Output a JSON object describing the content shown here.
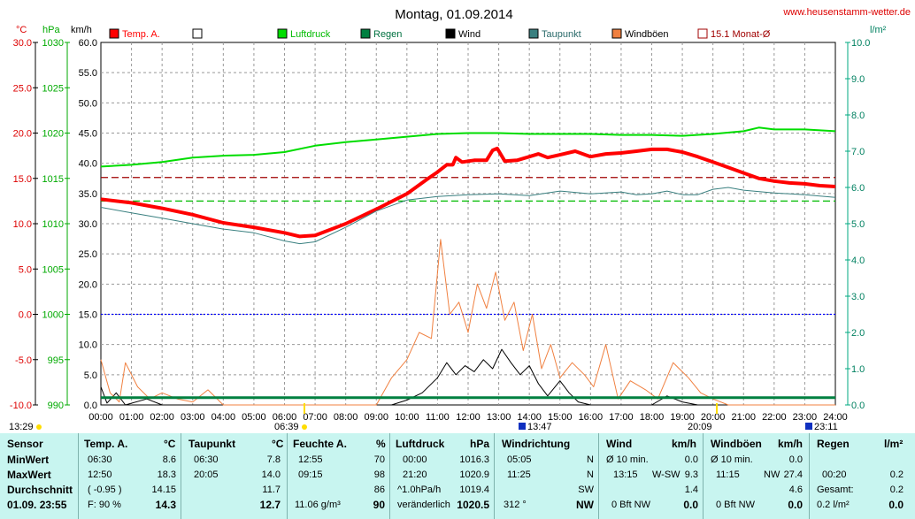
{
  "title": "Montag, 01.09.2014",
  "site": "www.heusenstamm-wetter.de",
  "axis_units": {
    "temp": "°C",
    "press": "hPa",
    "wind": "km/h",
    "rain": "l/m²"
  },
  "legend": [
    {
      "label": "Temp. A.",
      "color": "#ff0000",
      "text_color": "#ff0000",
      "style": "fill"
    },
    {
      "label": "",
      "color": "#ffffff",
      "text_color": "#000000",
      "style": "empty"
    },
    {
      "label": "Luftdruck",
      "color": "#00dd00",
      "text_color": "#00bb00",
      "style": "fill"
    },
    {
      "label": "Regen",
      "color": "#008040",
      "text_color": "#007040",
      "style": "fill"
    },
    {
      "label": "Wind",
      "color": "#000000",
      "text_color": "#000000",
      "style": "fill"
    },
    {
      "label": "Taupunkt",
      "color": "#3a8080",
      "text_color": "#2a6a6a",
      "style": "fill"
    },
    {
      "label": "Windböen",
      "color": "#f08040",
      "text_color": "#000000",
      "style": "fill"
    },
    {
      "label": "15.1 Monat-Ø",
      "color": "#a00000",
      "text_color": "#a00000",
      "style": "outline"
    }
  ],
  "chart_data": {
    "type": "line",
    "x_ticks": [
      "00:00",
      "01:00",
      "02:00",
      "03:00",
      "04:00",
      "05:00",
      "06:00",
      "07:00",
      "08:00",
      "09:00",
      "10:00",
      "11:00",
      "12:00",
      "13:00",
      "14:00",
      "15:00",
      "16:00",
      "17:00",
      "18:00",
      "19:00",
      "20:00",
      "21:00",
      "22:00",
      "23:00",
      "24:00"
    ],
    "y_ticks": {
      "temp": [
        "30.0",
        "25.0",
        "20.0",
        "15.0",
        "10.0",
        "5.0",
        "0.0",
        "-5.0",
        "-10.0"
      ],
      "press": [
        "1030",
        "1025",
        "1020",
        "1015",
        "1010",
        "1005",
        "1000",
        "995",
        "990"
      ],
      "wind": [
        "60.0",
        "55.0",
        "50.0",
        "45.0",
        "40.0",
        "35.0",
        "30.0",
        "25.0",
        "20.0",
        "15.0",
        "10.0",
        "5.0",
        "0.0"
      ],
      "rain": [
        "10.0",
        "9.0",
        "8.0",
        "7.0",
        "6.0",
        "5.0",
        "4.0",
        "3.0",
        "2.0",
        "1.0",
        "0.0"
      ]
    },
    "ranges": {
      "temp": [
        -10,
        30
      ],
      "press": [
        990,
        1030
      ],
      "wind": [
        0,
        60
      ],
      "rain": [
        0,
        10
      ],
      "hours": [
        0,
        24
      ]
    },
    "markers": [
      "13:29",
      "06:39",
      "13:47",
      "20:09",
      "23:11"
    ],
    "series": [
      {
        "name": "Temp. A.",
        "color": "#ff0000",
        "unit": "temp",
        "points": [
          [
            0,
            12.7
          ],
          [
            1,
            12.3
          ],
          [
            2,
            11.7
          ],
          [
            3,
            11.0
          ],
          [
            4,
            10.1
          ],
          [
            5,
            9.6
          ],
          [
            6,
            9.0
          ],
          [
            6.5,
            8.6
          ],
          [
            7,
            8.7
          ],
          [
            8,
            10.0
          ],
          [
            9,
            11.6
          ],
          [
            10,
            13.3
          ],
          [
            10.7,
            15.0
          ],
          [
            11,
            15.7
          ],
          [
            11.3,
            16.5
          ],
          [
            11.5,
            16.5
          ],
          [
            11.6,
            17.3
          ],
          [
            11.8,
            16.8
          ],
          [
            12.2,
            17.0
          ],
          [
            12.6,
            17.0
          ],
          [
            12.8,
            18.1
          ],
          [
            12.95,
            18.3
          ],
          [
            13.2,
            16.9
          ],
          [
            13.6,
            17.0
          ],
          [
            14,
            17.4
          ],
          [
            14.3,
            17.7
          ],
          [
            14.6,
            17.3
          ],
          [
            15,
            17.6
          ],
          [
            15.5,
            18.0
          ],
          [
            16,
            17.4
          ],
          [
            16.5,
            17.7
          ],
          [
            17,
            17.8
          ],
          [
            17.5,
            18.0
          ],
          [
            18,
            18.2
          ],
          [
            18.5,
            18.2
          ],
          [
            19,
            17.9
          ],
          [
            19.5,
            17.4
          ],
          [
            20,
            16.8
          ],
          [
            20.5,
            16.2
          ],
          [
            21,
            15.6
          ],
          [
            21.5,
            15.0
          ],
          [
            22,
            14.7
          ],
          [
            22.5,
            14.5
          ],
          [
            23,
            14.4
          ],
          [
            23.5,
            14.2
          ],
          [
            24,
            14.1
          ]
        ]
      },
      {
        "name": "Taupunkt",
        "color": "#3a8080",
        "unit": "temp",
        "points": [
          [
            0,
            11.8
          ],
          [
            1,
            11.2
          ],
          [
            2,
            10.6
          ],
          [
            3,
            10.0
          ],
          [
            4,
            9.4
          ],
          [
            5,
            9.0
          ],
          [
            6,
            8.1
          ],
          [
            6.5,
            7.8
          ],
          [
            7,
            8.0
          ],
          [
            8,
            9.6
          ],
          [
            9,
            11.4
          ],
          [
            10,
            12.6
          ],
          [
            11,
            13.0
          ],
          [
            12,
            13.2
          ],
          [
            13,
            13.3
          ],
          [
            14,
            13.1
          ],
          [
            15,
            13.6
          ],
          [
            16,
            13.3
          ],
          [
            17,
            13.5
          ],
          [
            17.5,
            13.2
          ],
          [
            18,
            13.3
          ],
          [
            18.5,
            13.6
          ],
          [
            19,
            13.2
          ],
          [
            19.5,
            13.2
          ],
          [
            20,
            13.8
          ],
          [
            20.5,
            14.0
          ],
          [
            21,
            13.7
          ],
          [
            22,
            13.4
          ],
          [
            23,
            13.2
          ],
          [
            24,
            12.9
          ]
        ]
      },
      {
        "name": "Luftdruck",
        "color": "#00dd00",
        "unit": "press",
        "points": [
          [
            0,
            1016.3
          ],
          [
            1,
            1016.5
          ],
          [
            2,
            1016.8
          ],
          [
            3,
            1017.3
          ],
          [
            4,
            1017.5
          ],
          [
            5,
            1017.6
          ],
          [
            6,
            1017.9
          ],
          [
            7,
            1018.6
          ],
          [
            8,
            1019.0
          ],
          [
            9,
            1019.3
          ],
          [
            10,
            1019.6
          ],
          [
            11,
            1019.9
          ],
          [
            12,
            1020.0
          ],
          [
            13,
            1020.0
          ],
          [
            14,
            1019.9
          ],
          [
            15,
            1019.9
          ],
          [
            16,
            1019.9
          ],
          [
            17,
            1019.8
          ],
          [
            18,
            1019.8
          ],
          [
            19,
            1019.7
          ],
          [
            20,
            1019.9
          ],
          [
            21,
            1020.2
          ],
          [
            21.5,
            1020.6
          ],
          [
            22,
            1020.4
          ],
          [
            23,
            1020.4
          ],
          [
            24,
            1020.2
          ]
        ]
      },
      {
        "name": "Wind",
        "color": "#000000",
        "unit": "wind",
        "points": [
          [
            0,
            3.0
          ],
          [
            0.2,
            0.3
          ],
          [
            0.5,
            2.0
          ],
          [
            0.8,
            0
          ],
          [
            1.5,
            1.0
          ],
          [
            2,
            0
          ],
          [
            9.5,
            0
          ],
          [
            10,
            0.8
          ],
          [
            10.5,
            2.0
          ],
          [
            11,
            4.5
          ],
          [
            11.3,
            7.0
          ],
          [
            11.6,
            5.0
          ],
          [
            11.9,
            6.5
          ],
          [
            12.2,
            5.5
          ],
          [
            12.5,
            7.5
          ],
          [
            12.8,
            6.0
          ],
          [
            13.1,
            9.2
          ],
          [
            13.4,
            7.0
          ],
          [
            13.7,
            5.0
          ],
          [
            14,
            6.5
          ],
          [
            14.3,
            3.5
          ],
          [
            14.6,
            1.5
          ],
          [
            15,
            4.0
          ],
          [
            15.3,
            2.0
          ],
          [
            15.6,
            0.5
          ],
          [
            16,
            0
          ],
          [
            18,
            0
          ],
          [
            18.5,
            1.5
          ],
          [
            19,
            0.5
          ],
          [
            19.5,
            0
          ],
          [
            24,
            0
          ]
        ]
      },
      {
        "name": "Windböen",
        "color": "#f08040",
        "unit": "wind",
        "points": [
          [
            0,
            7.5
          ],
          [
            0.3,
            2.0
          ],
          [
            0.6,
            0.5
          ],
          [
            0.8,
            7.0
          ],
          [
            1.2,
            3.0
          ],
          [
            1.6,
            1.0
          ],
          [
            2.0,
            2.0
          ],
          [
            2.5,
            1.0
          ],
          [
            3,
            0.5
          ],
          [
            3.5,
            2.5
          ],
          [
            4,
            0
          ],
          [
            9,
            0
          ],
          [
            9.5,
            4.5
          ],
          [
            10,
            7.5
          ],
          [
            10.4,
            12.0
          ],
          [
            10.8,
            11.0
          ],
          [
            11.1,
            27.4
          ],
          [
            11.4,
            15.0
          ],
          [
            11.7,
            17.0
          ],
          [
            12.0,
            12.0
          ],
          [
            12.3,
            20.0
          ],
          [
            12.6,
            16.0
          ],
          [
            12.9,
            22.0
          ],
          [
            13.2,
            14.0
          ],
          [
            13.5,
            17.0
          ],
          [
            13.8,
            9.0
          ],
          [
            14.1,
            15.0
          ],
          [
            14.4,
            6.0
          ],
          [
            14.7,
            10.0
          ],
          [
            15.0,
            4.5
          ],
          [
            15.4,
            7.0
          ],
          [
            15.8,
            5.0
          ],
          [
            16.1,
            3.0
          ],
          [
            16.5,
            10.0
          ],
          [
            16.9,
            1.0
          ],
          [
            17.3,
            4.0
          ],
          [
            17.8,
            2.5
          ],
          [
            18.2,
            1.0
          ],
          [
            18.7,
            7.0
          ],
          [
            19.2,
            4.5
          ],
          [
            19.6,
            2.0
          ],
          [
            20.0,
            1.0
          ],
          [
            20.5,
            0
          ],
          [
            24,
            0
          ]
        ]
      },
      {
        "name": "Regen",
        "color": "#008040",
        "unit": "rain",
        "points": [
          [
            0,
            0.2
          ],
          [
            24,
            0.2
          ]
        ]
      }
    ],
    "reference_lines": [
      {
        "name": "15.1 Monat-Ø",
        "color": "#a00000",
        "unit": "temp",
        "value": 15.1
      },
      {
        "name": "",
        "color": "#00bb00",
        "unit": "press",
        "value": 1012.5
      },
      {
        "name": "",
        "color": "#0000ff",
        "unit": "temp",
        "value": 0.0
      }
    ]
  },
  "stats": {
    "sensor": {
      "hdr": "Sensor",
      "rows": [
        "MinWert",
        "MaxWert",
        "Durchschnitt"
      ],
      "date": "01.09. 23:55"
    },
    "temp": {
      "hdr": "Temp. A.",
      "unit": "°C",
      "min_t": "06:30",
      "min_v": "8.6",
      "max_t": "12:50",
      "max_v": "18.3",
      "avg_a": "( -0.95 )",
      "avg_v": "14.15",
      "cur_a": "F: 90 %",
      "cur_v": "14.3"
    },
    "dew": {
      "hdr": "Taupunkt",
      "unit": "°C",
      "min_t": "06:30",
      "min_v": "7.8",
      "max_t": "20:05",
      "max_v": "14.0",
      "avg_v": "11.7",
      "cur_v": "12.7"
    },
    "hum": {
      "hdr": "Feuchte A.",
      "unit": "%",
      "min_t": "12:55",
      "min_v": "70",
      "max_t": "09:15",
      "max_v": "98",
      "avg_v": "86",
      "cur_a": "11.06 g/m³",
      "cur_v": "90"
    },
    "press": {
      "hdr": "Luftdruck",
      "unit": "hPa",
      "min_t": "00:00",
      "min_v": "1016.3",
      "max_t": "21:20",
      "max_v": "1020.9",
      "avg_a": "^1.0hPa/h",
      "avg_v": "1019.4",
      "cur_a": "veränderlich",
      "cur_v": "1020.5"
    },
    "dir": {
      "hdr": "Windrichtung",
      "min_t": "05:05",
      "min_v": "N",
      "max_t": "11:25",
      "max_v": "N",
      "avg_v": "SW",
      "cur_a": "312 °",
      "cur_v": "NW"
    },
    "wind": {
      "hdr": "Wind",
      "unit": "km/h",
      "min_t": "Ø 10 min.",
      "min_v": "0.0",
      "max_t": "13:15",
      "max_m": "W-SW",
      "max_v": "9.3",
      "avg_v": "1.4",
      "cur_a": "0 Bft NW",
      "cur_v": "0.0"
    },
    "gust": {
      "hdr": "Windböen",
      "unit": "km/h",
      "min_t": "Ø 10 min.",
      "min_v": "0.0",
      "max_t": "11:15",
      "max_m": "NW",
      "max_v": "27.4",
      "avg_v": "4.6",
      "cur_a": "0 Bft NW",
      "cur_v": "0.0"
    },
    "rain": {
      "hdr": "Regen",
      "unit": "l/m²",
      "max_t": "00:20",
      "max_v": "0.2",
      "avg_a": "Gesamt:",
      "avg_v": "0.2",
      "cur_a": "0.2 l/m²",
      "cur_v": "0.0"
    }
  }
}
